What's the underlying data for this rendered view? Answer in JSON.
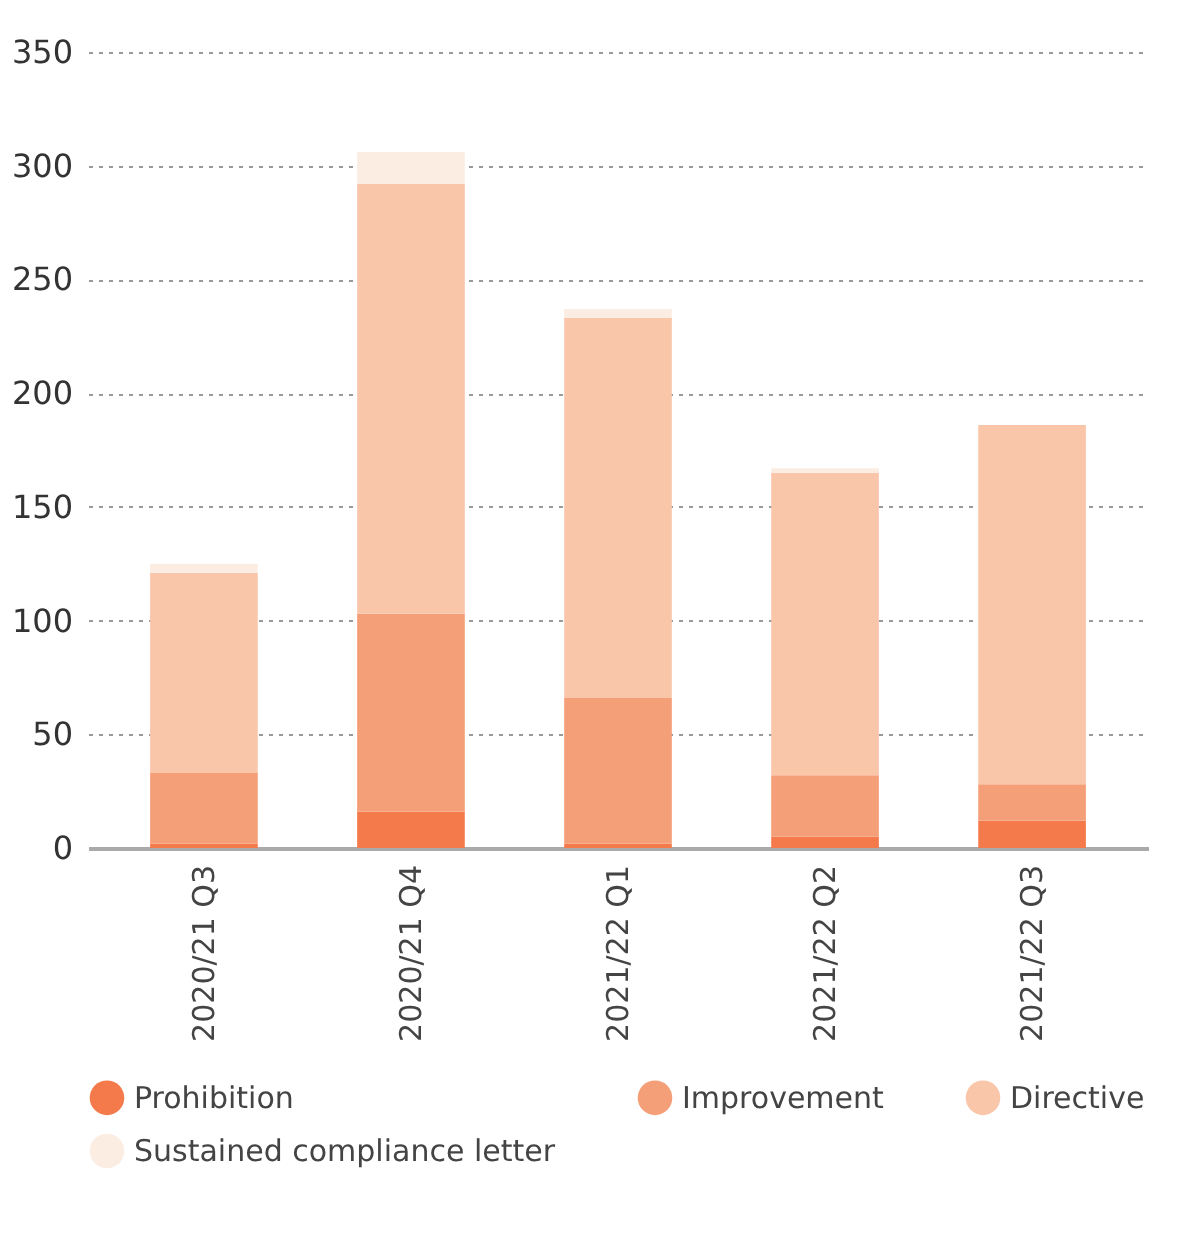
{
  "chart_data": {
    "type": "bar",
    "stacked": true,
    "categories": [
      "2020/21 Q3",
      "2020/21 Q4",
      "2021/22 Q1",
      "2021/22 Q2",
      "2021/22 Q3"
    ],
    "series": [
      {
        "name": "Prohibition",
        "color": "#f47a4c",
        "values": [
          2,
          16,
          2,
          5,
          12
        ]
      },
      {
        "name": "Improvement",
        "color": "#f59f78",
        "values": [
          31,
          87,
          64,
          27,
          16
        ]
      },
      {
        "name": "Directive",
        "color": "#fac6aa",
        "values": [
          88,
          189,
          167,
          133,
          158
        ]
      },
      {
        "name": "Sustained compliance letter",
        "color": "#fcede3",
        "values": [
          4,
          14,
          4,
          2,
          0
        ]
      }
    ],
    "ylim": [
      0,
      350
    ],
    "yticks": [
      0,
      50,
      100,
      150,
      200,
      250,
      300,
      350
    ],
    "grid": "y",
    "legend": "bottom"
  }
}
